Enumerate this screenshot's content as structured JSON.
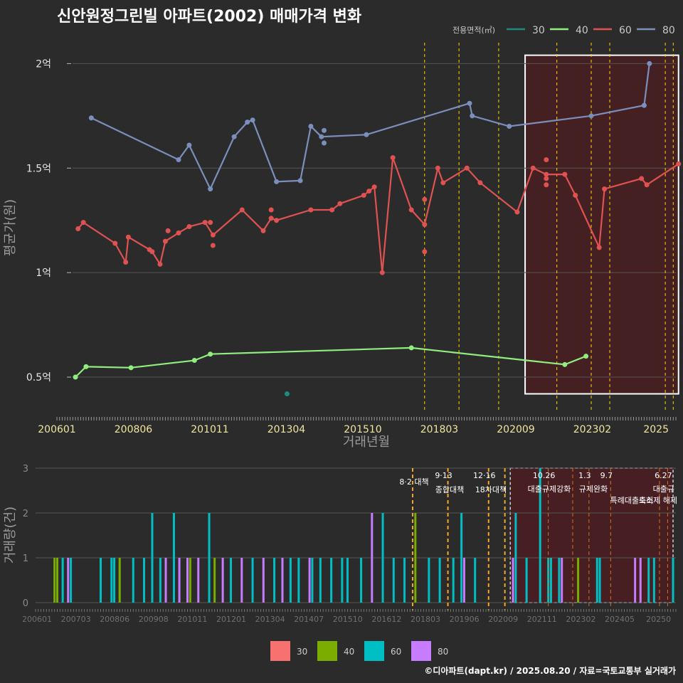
{
  "title": "신안원정그린빌 아파트(2002) 매매가격 변화",
  "caption": "©디아파트(dapt.kr) / 2025.08.20 / 자료=국토교통부 실거래가",
  "colors": {
    "background": "#2b2b2b",
    "grid": "#555555",
    "policy_line": "#ffd700",
    "highlight_fill": "#4a1e22",
    "highlight_border": "#ffffff",
    "price_30": "#1f8a7e",
    "price_40": "#90ee7f",
    "price_60": "#e05252",
    "price_80": "#7b8fbd",
    "bar_30": "#f87171",
    "bar_40": "#7aad00",
    "bar_60": "#00bfc4",
    "bar_80": "#c77cff"
  },
  "legend_top": {
    "title": "전용면적(㎡)",
    "items": [
      {
        "label": "30",
        "color": "#1f8a7e"
      },
      {
        "label": "40",
        "color": "#90ee7f"
      },
      {
        "label": "60",
        "color": "#e05252"
      },
      {
        "label": "80",
        "color": "#7b8fbd"
      }
    ]
  },
  "legend_bottom": {
    "items": [
      {
        "label": "30",
        "color": "#f87171"
      },
      {
        "label": "40",
        "color": "#7aad00"
      },
      {
        "label": "60",
        "color": "#00bfc4"
      },
      {
        "label": "80",
        "color": "#c77cff"
      }
    ]
  },
  "chart_data": [
    {
      "type": "line",
      "xlabel": "거래년월",
      "ylabel": "평균가(원)",
      "x_range": [
        2006.0,
        2025.5
      ],
      "ylim": [
        0.33,
        2.1
      ],
      "y_ticks": [
        {
          "v": 0.5,
          "label": "0.5억"
        },
        {
          "v": 1.0,
          "label": "1억"
        },
        {
          "v": 1.5,
          "label": "1.5억"
        },
        {
          "v": 2.0,
          "label": "2억"
        }
      ],
      "x_ticks": [
        "200601",
        "200806",
        "201011",
        "201304",
        "201510",
        "201803",
        "202009",
        "202302",
        "2025"
      ],
      "highlight": {
        "x_from": "2020-10",
        "x_to": "2025-08",
        "y_from": 0.42,
        "y_to": 2.04
      },
      "policy_lines": [
        "2017-08",
        "2018-09",
        "2019-12",
        "2021-10",
        "2022-11",
        "2023-06",
        "2025-03",
        "2025-06"
      ],
      "series": [
        {
          "name": "30",
          "points": [
            [
              "2013-04",
              0.42
            ]
          ]
        },
        {
          "name": "40",
          "points": [
            [
              "2006-08",
              0.5
            ],
            [
              "2006-12",
              0.55
            ],
            [
              "2008-05",
              0.545
            ],
            [
              "2010-05",
              0.58
            ],
            [
              "2010-11",
              0.61
            ],
            [
              "2017-03",
              0.64
            ],
            [
              "2022-01",
              0.56
            ],
            [
              "2022-09",
              0.6
            ]
          ]
        },
        {
          "name": "60",
          "points": [
            [
              "2006-09",
              1.21
            ],
            [
              "2006-11",
              1.24
            ],
            [
              "2007-11",
              1.14
            ],
            [
              "2008-03",
              1.05
            ],
            [
              "2008-04",
              1.17
            ],
            [
              "2008-12",
              1.11
            ],
            [
              "2009-01",
              1.1
            ],
            [
              "2009-04",
              1.04
            ],
            [
              "2009-06",
              1.15
            ],
            [
              "2009-11",
              1.19
            ],
            [
              "2010-03",
              1.22
            ],
            [
              "2010-09",
              1.24
            ],
            [
              "2010-12",
              1.18
            ],
            [
              "2011-11",
              1.3
            ],
            [
              "2012-07",
              1.2
            ],
            [
              "2012-10",
              1.26
            ],
            [
              "2012-12",
              1.25
            ],
            [
              "2014-01",
              1.3
            ],
            [
              "2014-09",
              1.3
            ],
            [
              "2014-12",
              1.33
            ],
            [
              "2015-09",
              1.37
            ],
            [
              "2016-01",
              1.41
            ],
            [
              "2016-04",
              1.0
            ],
            [
              "2016-08",
              1.55
            ],
            [
              "2017-03",
              1.3
            ],
            [
              "2017-08",
              1.23
            ],
            [
              "2018-01",
              1.5
            ],
            [
              "2018-03",
              1.43
            ],
            [
              "2018-12",
              1.5
            ],
            [
              "2019-05",
              1.43
            ],
            [
              "2020-07",
              1.29
            ],
            [
              "2021-01",
              1.5
            ],
            [
              "2021-06",
              1.47
            ],
            [
              "2022-01",
              1.47
            ],
            [
              "2022-05",
              1.37
            ],
            [
              "2023-02",
              1.12
            ],
            [
              "2023-04",
              1.4
            ],
            [
              "2024-06",
              1.45
            ],
            [
              "2024-08",
              1.42
            ],
            [
              "2025-08",
              1.52
            ]
          ],
          "extra_points": [
            [
              "2010-11",
              1.24
            ],
            [
              "2010-12",
              1.13
            ],
            [
              "2009-07",
              1.2
            ],
            [
              "2012-10",
              1.3
            ],
            [
              "2015-11",
              1.39
            ],
            [
              "2017-08",
              1.35
            ],
            [
              "2017-08",
              1.1
            ],
            [
              "2021-06",
              1.54
            ],
            [
              "2021-06",
              1.45
            ],
            [
              "2021-06",
              1.42
            ]
          ]
        },
        {
          "name": "80",
          "points": [
            [
              "2007-02",
              1.74
            ],
            [
              "2009-11",
              1.54
            ],
            [
              "2010-03",
              1.61
            ],
            [
              "2010-11",
              1.4
            ],
            [
              "2011-08",
              1.65
            ],
            [
              "2012-01",
              1.72
            ],
            [
              "2012-03",
              1.73
            ],
            [
              "2012-12",
              1.435
            ],
            [
              "2013-09",
              1.44
            ],
            [
              "2014-01",
              1.7
            ],
            [
              "2014-05",
              1.65
            ],
            [
              "2015-10",
              1.66
            ],
            [
              "2019-01",
              1.81
            ],
            [
              "2019-02",
              1.75
            ],
            [
              "2020-04",
              1.7
            ],
            [
              "2022-11",
              1.75
            ],
            [
              "2024-07",
              1.8
            ],
            [
              "2024-09",
              2.0
            ]
          ],
          "extra_points": [
            [
              "2014-06",
              1.68
            ],
            [
              "2014-06",
              1.62
            ]
          ]
        }
      ]
    },
    {
      "type": "bar",
      "ylabel": "거래량(건)",
      "ylim": [
        0,
        3
      ],
      "y_ticks": [
        "0",
        "1",
        "2",
        "3"
      ],
      "x_ticks": [
        "200601",
        "200703",
        "200806",
        "200908",
        "201011",
        "201201",
        "201304",
        "201407",
        "201510",
        "201612",
        "201803",
        "201906",
        "202009",
        "202111",
        "202302",
        "202405",
        "20250"
      ],
      "highlight": {
        "x_from": "2020-08",
        "x_to": "2025-08"
      },
      "policies": [
        {
          "date": "2017-08",
          "date_label": "",
          "title": "8·2 대책"
        },
        {
          "date": "2018-09",
          "date_label": "9·13",
          "title": "종합대책"
        },
        {
          "date": "2019-12",
          "date_label": "12·16",
          "title": "18차대책"
        },
        {
          "date": "2020-06",
          "date_label": "",
          "title": ""
        },
        {
          "date": "2021-10",
          "date_label": "10.26",
          "title": "대출규제강화"
        },
        {
          "date": "2022-07",
          "date_label": "",
          "title": ""
        },
        {
          "date": "2023-01",
          "date_label": "1.3",
          "title": "규제완화"
        },
        {
          "date": "2023-09",
          "date_label": "9.7",
          "title": "특례대출축소"
        },
        {
          "date": "2025-03",
          "date_label": "",
          "title": "토허제 해제"
        },
        {
          "date": "2025-06",
          "date_label": "6.27",
          "title": "대출규"
        }
      ],
      "bars": [
        {
          "s": "40",
          "d": "2006-08",
          "v": 1
        },
        {
          "s": "40",
          "d": "2006-09",
          "v": 1
        },
        {
          "s": "60",
          "d": "2006-11",
          "v": 1
        },
        {
          "s": "80",
          "d": "2007-01",
          "v": 1
        },
        {
          "s": "60",
          "d": "2007-02",
          "v": 1
        },
        {
          "s": "60",
          "d": "2008-01",
          "v": 1
        },
        {
          "s": "60",
          "d": "2008-05",
          "v": 1
        },
        {
          "s": "60",
          "d": "2008-06",
          "v": 1
        },
        {
          "s": "40",
          "d": "2008-08",
          "v": 1
        },
        {
          "s": "60",
          "d": "2009-01",
          "v": 1
        },
        {
          "s": "60",
          "d": "2009-05",
          "v": 1
        },
        {
          "s": "60",
          "d": "2009-08",
          "v": 2
        },
        {
          "s": "60",
          "d": "2009-11",
          "v": 1
        },
        {
          "s": "80",
          "d": "2010-01",
          "v": 1
        },
        {
          "s": "60",
          "d": "2010-04",
          "v": 2
        },
        {
          "s": "80",
          "d": "2010-06",
          "v": 1
        },
        {
          "s": "80",
          "d": "2010-09",
          "v": 1
        },
        {
          "s": "40",
          "d": "2010-10",
          "v": 1
        },
        {
          "s": "80",
          "d": "2011-01",
          "v": 1
        },
        {
          "s": "60",
          "d": "2011-05",
          "v": 2
        },
        {
          "s": "40",
          "d": "2011-07",
          "v": 1
        },
        {
          "s": "80",
          "d": "2011-10",
          "v": 1
        },
        {
          "s": "60",
          "d": "2012-01",
          "v": 1
        },
        {
          "s": "80",
          "d": "2012-05",
          "v": 1
        },
        {
          "s": "60",
          "d": "2012-09",
          "v": 1
        },
        {
          "s": "80",
          "d": "2013-01",
          "v": 1
        },
        {
          "s": "60",
          "d": "2013-05",
          "v": 1
        },
        {
          "s": "80",
          "d": "2013-08",
          "v": 1
        },
        {
          "s": "60",
          "d": "2013-11",
          "v": 1
        },
        {
          "s": "60",
          "d": "2014-02",
          "v": 1
        },
        {
          "s": "80",
          "d": "2014-06",
          "v": 1
        },
        {
          "s": "60",
          "d": "2014-07",
          "v": 1
        },
        {
          "s": "60",
          "d": "2014-10",
          "v": 1
        },
        {
          "s": "60",
          "d": "2015-02",
          "v": 1
        },
        {
          "s": "60",
          "d": "2015-06",
          "v": 1
        },
        {
          "s": "60",
          "d": "2015-08",
          "v": 1
        },
        {
          "s": "60",
          "d": "2016-01",
          "v": 1
        },
        {
          "s": "80",
          "d": "2016-05",
          "v": 2
        },
        {
          "s": "60",
          "d": "2016-09",
          "v": 2
        },
        {
          "s": "60",
          "d": "2017-01",
          "v": 1
        },
        {
          "s": "60",
          "d": "2017-05",
          "v": 1
        },
        {
          "s": "40",
          "d": "2017-09",
          "v": 2
        },
        {
          "s": "60",
          "d": "2018-02",
          "v": 1
        },
        {
          "s": "60",
          "d": "2018-06",
          "v": 1
        },
        {
          "s": "60",
          "d": "2018-11",
          "v": 1
        },
        {
          "s": "60",
          "d": "2019-02",
          "v": 2
        },
        {
          "s": "80",
          "d": "2019-03",
          "v": 1
        },
        {
          "s": "60",
          "d": "2019-07",
          "v": 1
        },
        {
          "s": "80",
          "d": "2020-09",
          "v": 1
        },
        {
          "s": "60",
          "d": "2020-10",
          "v": 2
        },
        {
          "s": "60",
          "d": "2021-02",
          "v": 1
        },
        {
          "s": "60",
          "d": "2021-07",
          "v": 3
        },
        {
          "s": "60",
          "d": "2021-10",
          "v": 1
        },
        {
          "s": "60",
          "d": "2021-11",
          "v": 1
        },
        {
          "s": "60",
          "d": "2022-02",
          "v": 1
        },
        {
          "s": "80",
          "d": "2022-03",
          "v": 1
        },
        {
          "s": "40",
          "d": "2022-09",
          "v": 1
        },
        {
          "s": "60",
          "d": "2023-04",
          "v": 1
        },
        {
          "s": "60",
          "d": "2023-05",
          "v": 1
        },
        {
          "s": "80",
          "d": "2024-06",
          "v": 1
        },
        {
          "s": "80",
          "d": "2024-08",
          "v": 1
        },
        {
          "s": "60",
          "d": "2024-11",
          "v": 1
        },
        {
          "s": "60",
          "d": "2025-01",
          "v": 1
        },
        {
          "s": "60",
          "d": "2025-08",
          "v": 1
        }
      ]
    }
  ]
}
